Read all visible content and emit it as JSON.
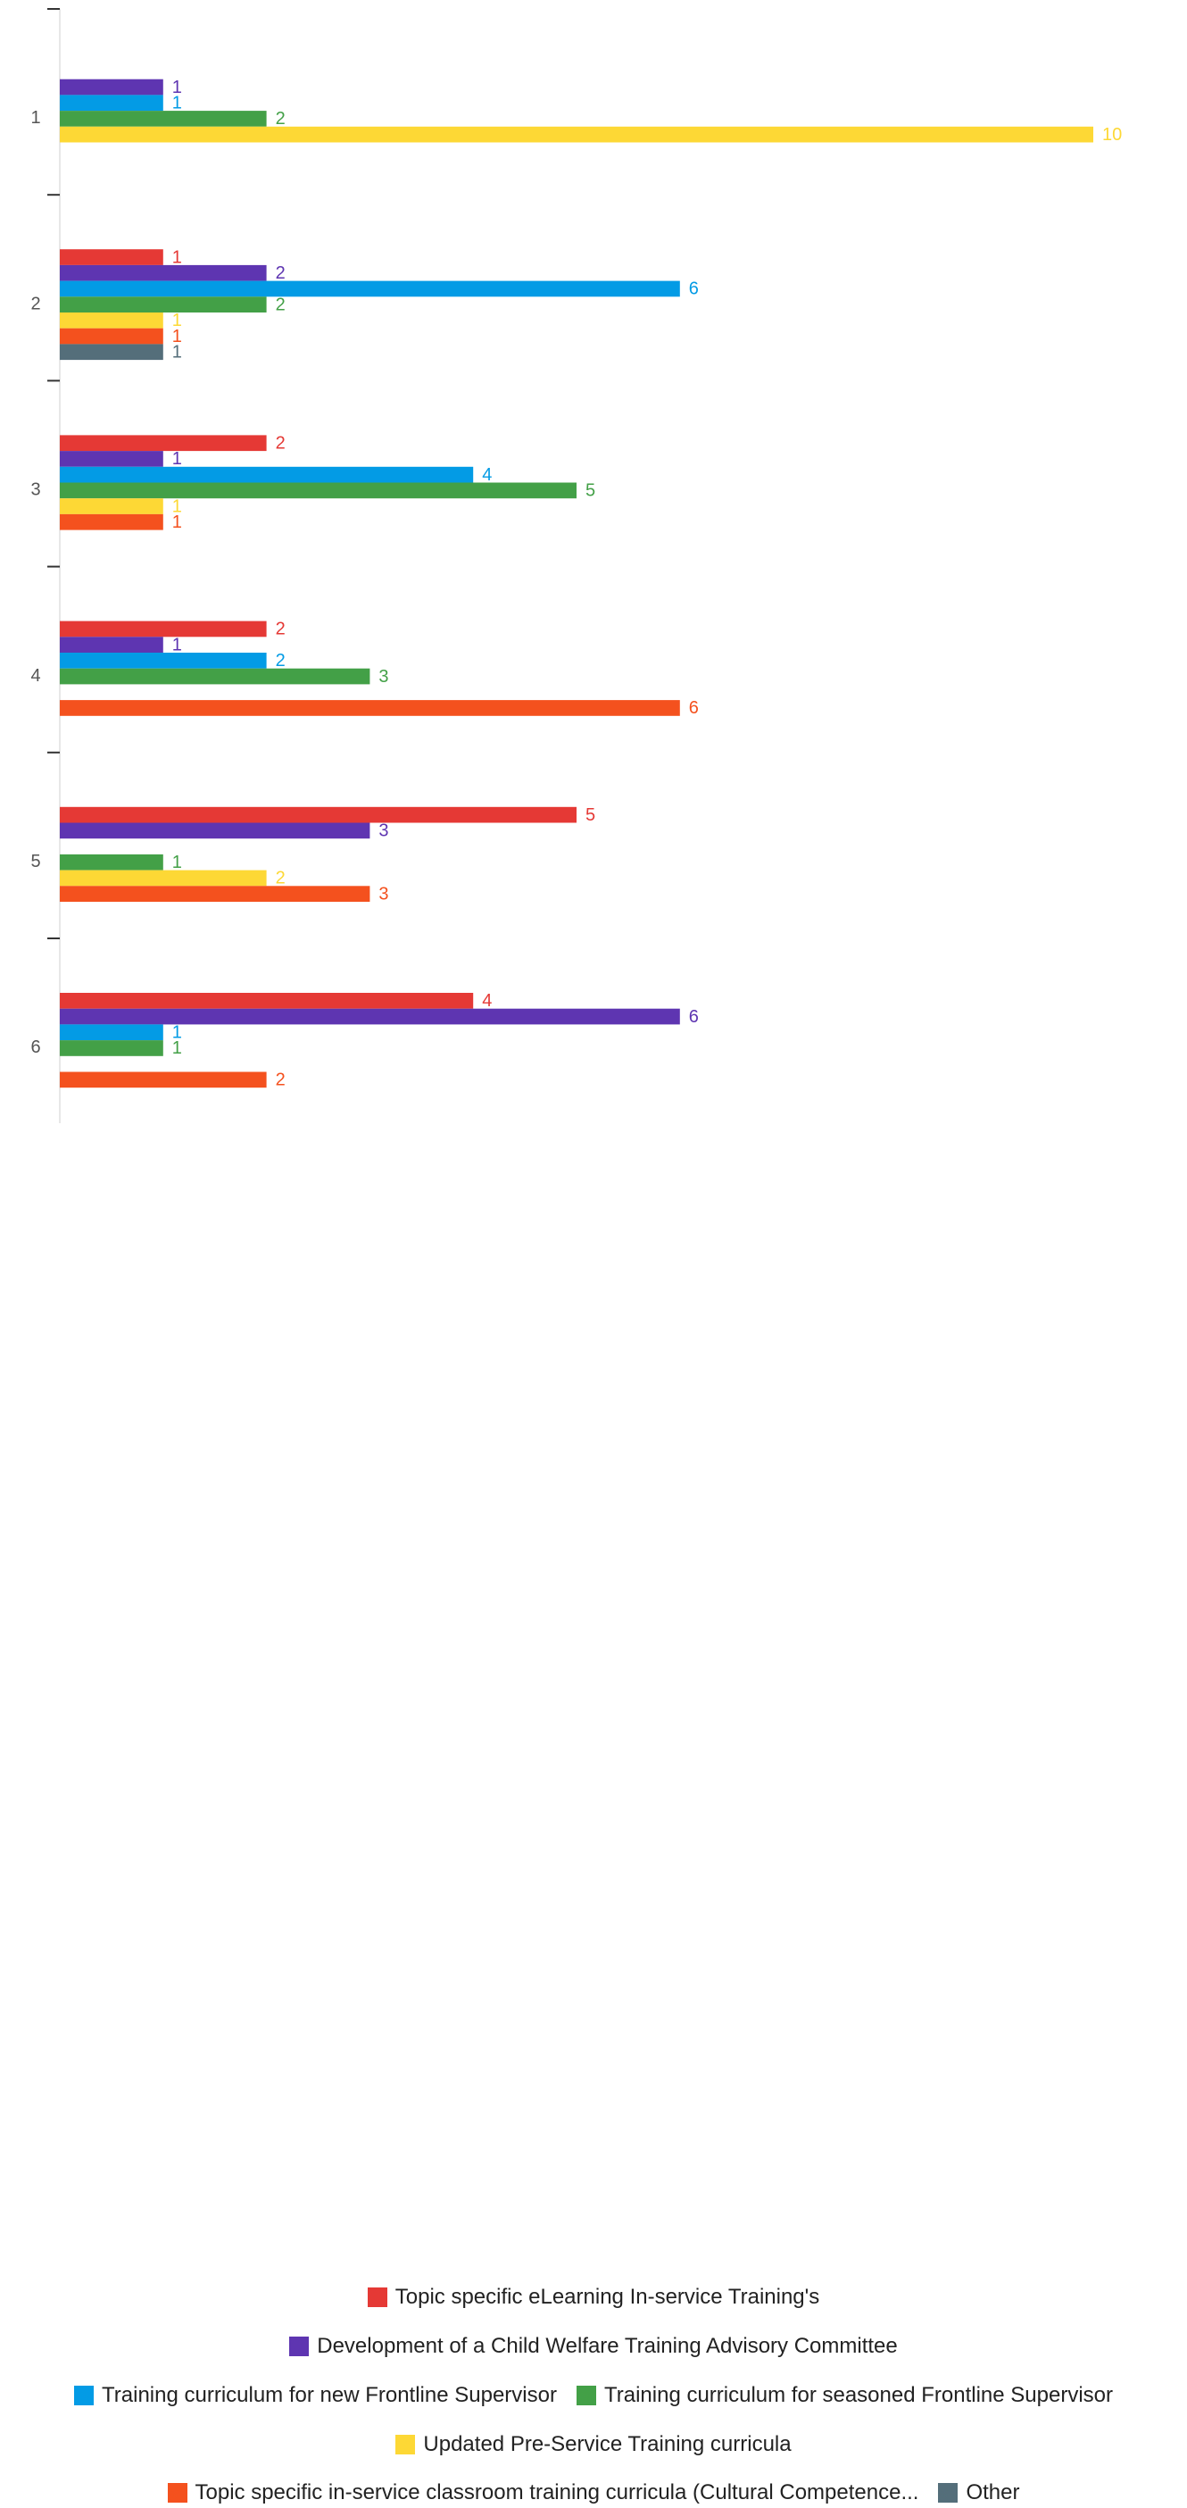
{
  "chart_data": {
    "type": "bar",
    "orientation": "horizontal",
    "categories": [
      "1",
      "2",
      "3",
      "4",
      "5",
      "6"
    ],
    "xlim": [
      0,
      10
    ],
    "grid": false,
    "legend_position": "bottom",
    "series": [
      {
        "name": "Topic specific eLearning In-service Training's",
        "color": "#e53935",
        "values": [
          null,
          1,
          2,
          2,
          5,
          4
        ]
      },
      {
        "name": "Development of a Child Welfare Training Advisory Committee",
        "color": "#5e35b1",
        "values": [
          1,
          2,
          1,
          1,
          3,
          6
        ]
      },
      {
        "name": "Training curriculum for new Frontline Supervisor",
        "color": "#039be5",
        "values": [
          1,
          6,
          4,
          2,
          null,
          1
        ]
      },
      {
        "name": "Training curriculum for seasoned Frontline Supervisor",
        "color": "#43a047",
        "values": [
          2,
          2,
          5,
          3,
          1,
          1
        ]
      },
      {
        "name": "Updated Pre-Service Training curricula",
        "color": "#fdd835",
        "values": [
          10,
          1,
          1,
          null,
          2,
          null
        ]
      },
      {
        "name": "Topic specific in-service classroom training curricula (Cultural Competence...",
        "color": "#f4511e",
        "values": [
          null,
          1,
          1,
          6,
          3,
          2
        ]
      },
      {
        "name": "Other",
        "color": "#546e7a",
        "values": [
          null,
          1,
          null,
          null,
          null,
          null
        ]
      }
    ]
  }
}
